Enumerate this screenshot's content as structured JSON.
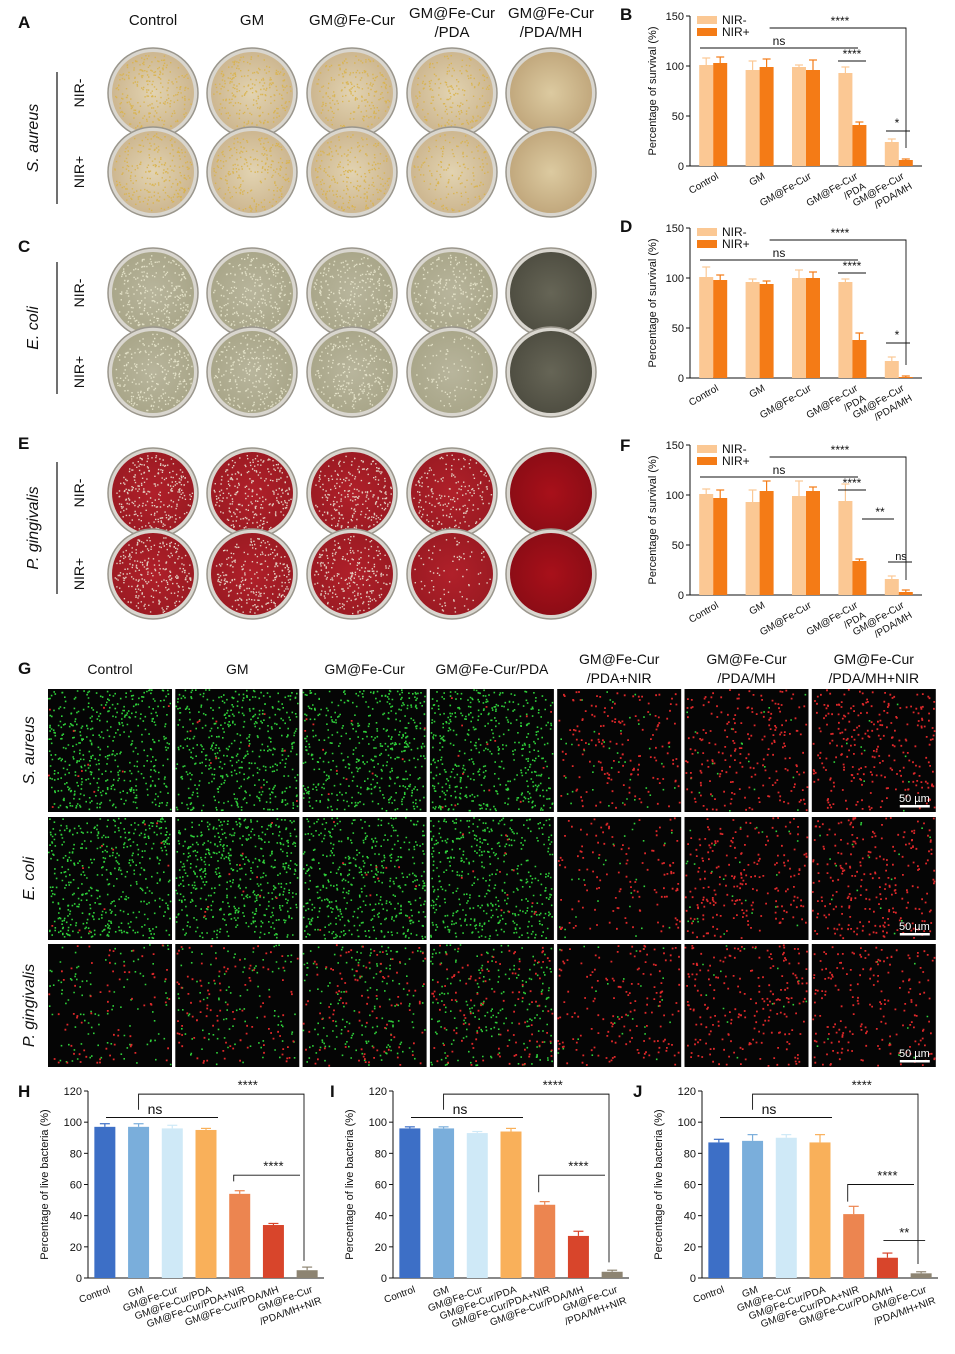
{
  "panel_letters": [
    "A",
    "B",
    "C",
    "D",
    "E",
    "F",
    "G",
    "H",
    "I",
    "J"
  ],
  "plates": {
    "col_titles": [
      [
        "Control"
      ],
      [
        "GM"
      ],
      [
        "GM@Fe-Cur"
      ],
      [
        "GM@Fe-Cur",
        "/PDA"
      ],
      [
        "GM@Fe-Cur",
        "/PDA/MH"
      ]
    ],
    "row_labels": [
      "NIR-",
      "NIR+"
    ],
    "species": [
      "S. aureus",
      "E. coli",
      "P. gingivalis"
    ],
    "colony_density": [
      [
        [
          1.0,
          0.95,
          0.85,
          0.75,
          0.0
        ],
        [
          0.95,
          0.9,
          0.9,
          0.6,
          0.0
        ]
      ],
      [
        [
          1.0,
          0.9,
          0.9,
          0.8,
          0.0
        ],
        [
          0.9,
          0.9,
          0.85,
          0.35,
          0.0
        ]
      ],
      [
        [
          1.0,
          1.0,
          0.95,
          0.7,
          0.0
        ],
        [
          1.0,
          0.95,
          0.95,
          0.3,
          0.0
        ]
      ]
    ],
    "colors": {
      "sa_bg": "#cbb48d",
      "sa_colony": "#d9b24a",
      "ec_bg": "#a8a588",
      "ec_colony": "#e8e6cc",
      "pg_bg": "#9a1a22",
      "pg_colony": "#e9e2d2"
    }
  },
  "survival_charts": [
    {
      "letter": "B",
      "ylabel": "Percentage of survival (%)",
      "ylim": [
        0,
        150
      ],
      "yticks": [
        "0",
        "50",
        "100",
        "150"
      ],
      "categories": [
        [
          "Control"
        ],
        [
          "GM"
        ],
        [
          "GM@Fe-Cur"
        ],
        [
          "GM@Fe-Cur",
          "/PDA"
        ],
        [
          "GM@Fe-Cur",
          "/PDA/MH"
        ]
      ],
      "legend": [
        "NIR-",
        "NIR+"
      ],
      "series": [
        {
          "values": [
            101,
            96,
            99,
            93,
            24
          ],
          "errors": [
            7,
            9,
            2,
            6,
            3
          ]
        },
        {
          "values": [
            103,
            99,
            96,
            41,
            6
          ],
          "errors": [
            6,
            8,
            10,
            3,
            1
          ]
        }
      ],
      "annotations": {
        "ns": "ns",
        "top": "****",
        "mid": "****",
        "low": "*"
      }
    },
    {
      "letter": "D",
      "ylabel": "Percentage of survival (%)",
      "ylim": [
        0,
        150
      ],
      "yticks": [
        "0",
        "50",
        "100",
        "150"
      ],
      "categories": [
        [
          "Control"
        ],
        [
          "GM"
        ],
        [
          "GM@Fe-Cur"
        ],
        [
          "GM@Fe-Cur",
          "/PDA"
        ],
        [
          "GM@Fe-Cur",
          "/PDA/MH"
        ]
      ],
      "legend": [
        "NIR-",
        "NIR+"
      ],
      "series": [
        {
          "values": [
            101,
            96,
            100,
            96,
            17
          ],
          "errors": [
            10,
            3,
            8,
            3,
            4
          ]
        },
        {
          "values": [
            98,
            94,
            100,
            38,
            1
          ],
          "errors": [
            5,
            3,
            6,
            7,
            1
          ]
        }
      ],
      "annotations": {
        "ns": "ns",
        "top": "****",
        "mid": "****",
        "low": "*"
      }
    },
    {
      "letter": "F",
      "ylabel": "Percentage of survival (%)",
      "ylim": [
        0,
        150
      ],
      "yticks": [
        "0",
        "50",
        "100",
        "150"
      ],
      "categories": [
        [
          "Control"
        ],
        [
          "GM"
        ],
        [
          "GM@Fe-Cur"
        ],
        [
          "GM@Fe-Cur",
          "/PDA"
        ],
        [
          "GM@Fe-Cur",
          "/PDA/MH"
        ]
      ],
      "legend": [
        "NIR-",
        "NIR+"
      ],
      "series": [
        {
          "values": [
            101,
            93,
            99,
            94,
            16
          ],
          "errors": [
            5,
            12,
            15,
            17,
            3
          ]
        },
        {
          "values": [
            97,
            104,
            104,
            34,
            3
          ],
          "errors": [
            8,
            10,
            4,
            2,
            2
          ]
        }
      ],
      "annotations": {
        "ns": "ns",
        "top": "****",
        "mid": "****",
        "low": "**",
        "low2": "ns"
      }
    }
  ],
  "fluorescence": {
    "col_titles": [
      [
        "Control"
      ],
      [
        "GM"
      ],
      [
        "GM@Fe-Cur"
      ],
      [
        "GM@Fe-Cur/PDA"
      ],
      [
        "GM@Fe-Cur",
        "/PDA+NIR"
      ],
      [
        "GM@Fe-Cur",
        "/PDA/MH"
      ],
      [
        "GM@Fe-Cur",
        "/PDA/MH+NIR"
      ]
    ],
    "row_labels": [
      "S. aureus",
      "E. coli",
      "P. gingivalis"
    ],
    "scale_bar": "50 µm",
    "green_density": [
      [
        0.9,
        0.9,
        0.9,
        0.9,
        0.08,
        0.04,
        0.02
      ],
      [
        0.9,
        1.0,
        0.9,
        0.85,
        0.05,
        0.05,
        0.03
      ],
      [
        0.2,
        0.2,
        0.35,
        0.4,
        0.05,
        0.03,
        0.02
      ]
    ],
    "red_density": [
      [
        0.03,
        0.03,
        0.03,
        0.04,
        0.45,
        0.6,
        0.75
      ],
      [
        0.03,
        0.03,
        0.03,
        0.04,
        0.35,
        0.6,
        0.7
      ],
      [
        0.2,
        0.3,
        0.3,
        0.35,
        0.45,
        0.6,
        0.55
      ]
    ]
  },
  "live_charts": [
    {
      "letter": "H",
      "ylabel": "Percentage of live bacteria (%)",
      "ylim": [
        0,
        120
      ],
      "yticks": [
        "0",
        "20",
        "40",
        "60",
        "80",
        "100",
        "120"
      ],
      "categories": [
        "Control",
        "GM",
        "GM@Fe-Cur",
        "GM@Fe-Cur/PDA",
        "GM@Fe-Cur/PDA+NIR",
        "GM@Fe-Cur/PDA/MH",
        "GM@Fe-Cur/PDA/MH+NIR"
      ],
      "values": [
        97,
        97,
        96,
        95,
        54,
        34,
        5
      ],
      "errors": [
        2,
        2,
        2,
        1,
        2,
        1,
        2
      ],
      "annotations": {
        "ns": "ns",
        "top": "****",
        "mid": "****"
      }
    },
    {
      "letter": "I",
      "ylabel": "Percentage of live bacteria (%)",
      "ylim": [
        0,
        120
      ],
      "yticks": [
        "0",
        "20",
        "40",
        "60",
        "80",
        "100",
        "120"
      ],
      "categories": [
        "Control",
        "GM",
        "GM@Fe-Cur",
        "GM@Fe-Cur/PDA",
        "GM@Fe-Cur/PDA+NIR",
        "GM@Fe-Cur/PDA/MH",
        "GM@Fe-Cur/PDA/MH+NIR"
      ],
      "values": [
        96,
        96,
        93,
        94,
        47,
        27,
        4
      ],
      "errors": [
        1,
        1,
        1,
        2,
        2,
        3,
        1
      ],
      "annotations": {
        "ns": "ns",
        "top": "****",
        "mid": "****"
      }
    },
    {
      "letter": "J",
      "ylabel": "Percentage of live bacteria (%)",
      "ylim": [
        0,
        120
      ],
      "yticks": [
        "0",
        "20",
        "40",
        "60",
        "80",
        "100",
        "120"
      ],
      "categories": [
        "Control",
        "GM",
        "GM@Fe-Cur",
        "GM@Fe-Cur/PDA",
        "GM@Fe-Cur/PDA+NIR",
        "GM@Fe-Cur/PDA/MH",
        "GM@Fe-Cur/PDA/MH+NIR"
      ],
      "values": [
        87,
        88,
        90,
        87,
        41,
        13,
        3
      ],
      "errors": [
        2,
        4,
        2,
        5,
        5,
        3,
        1
      ],
      "annotations": {
        "ns": "ns",
        "top": "****",
        "mid": "****",
        "low": "**"
      }
    }
  ],
  "chart_data": [
    {
      "type": "bar",
      "title": "B",
      "ylabel": "Percentage of survival (%)",
      "ylim": [
        0,
        150
      ],
      "categories": [
        "Control",
        "GM",
        "GM@Fe-Cur",
        "GM@Fe-Cur/PDA",
        "GM@Fe-Cur/PDA/MH"
      ],
      "series": [
        {
          "name": "NIR-",
          "values": [
            101,
            96,
            99,
            93,
            24
          ]
        },
        {
          "name": "NIR+",
          "values": [
            103,
            99,
            96,
            41,
            6
          ]
        }
      ]
    },
    {
      "type": "bar",
      "title": "D",
      "ylabel": "Percentage of survival (%)",
      "ylim": [
        0,
        150
      ],
      "categories": [
        "Control",
        "GM",
        "GM@Fe-Cur",
        "GM@Fe-Cur/PDA",
        "GM@Fe-Cur/PDA/MH"
      ],
      "series": [
        {
          "name": "NIR-",
          "values": [
            101,
            96,
            100,
            96,
            17
          ]
        },
        {
          "name": "NIR+",
          "values": [
            98,
            94,
            100,
            38,
            1
          ]
        }
      ]
    },
    {
      "type": "bar",
      "title": "F",
      "ylabel": "Percentage of survival (%)",
      "ylim": [
        0,
        150
      ],
      "categories": [
        "Control",
        "GM",
        "GM@Fe-Cur",
        "GM@Fe-Cur/PDA",
        "GM@Fe-Cur/PDA/MH"
      ],
      "series": [
        {
          "name": "NIR-",
          "values": [
            101,
            93,
            99,
            94,
            16
          ]
        },
        {
          "name": "NIR+",
          "values": [
            97,
            104,
            104,
            34,
            3
          ]
        }
      ]
    },
    {
      "type": "bar",
      "title": "H",
      "ylabel": "Percentage of live bacteria (%)",
      "ylim": [
        0,
        120
      ],
      "categories": [
        "Control",
        "GM",
        "GM@Fe-Cur",
        "GM@Fe-Cur/PDA",
        "GM@Fe-Cur/PDA+NIR",
        "GM@Fe-Cur/PDA/MH",
        "GM@Fe-Cur/PDA/MH+NIR"
      ],
      "values": [
        97,
        97,
        96,
        95,
        54,
        34,
        5
      ]
    },
    {
      "type": "bar",
      "title": "I",
      "ylabel": "Percentage of live bacteria (%)",
      "ylim": [
        0,
        120
      ],
      "categories": [
        "Control",
        "GM",
        "GM@Fe-Cur",
        "GM@Fe-Cur/PDA",
        "GM@Fe-Cur/PDA+NIR",
        "GM@Fe-Cur/PDA/MH",
        "GM@Fe-Cur/PDA/MH+NIR"
      ],
      "values": [
        96,
        96,
        93,
        94,
        47,
        27,
        4
      ]
    },
    {
      "type": "bar",
      "title": "J",
      "ylabel": "Percentage of live bacteria (%)",
      "ylim": [
        0,
        120
      ],
      "categories": [
        "Control",
        "GM",
        "GM@Fe-Cur",
        "GM@Fe-Cur/PDA",
        "GM@Fe-Cur/PDA+NIR",
        "GM@Fe-Cur/PDA/MH",
        "GM@Fe-Cur/PDA/MH+NIR"
      ],
      "values": [
        87,
        88,
        90,
        87,
        41,
        13,
        3
      ]
    }
  ],
  "colors": {
    "nir_minus": "#fbc894",
    "nir_plus": "#f47b16",
    "live_bars": [
      "#3d6fc6",
      "#7aaedb",
      "#cfe9f7",
      "#f9b05a",
      "#ec8550",
      "#d8452b",
      "#8d8472"
    ]
  }
}
